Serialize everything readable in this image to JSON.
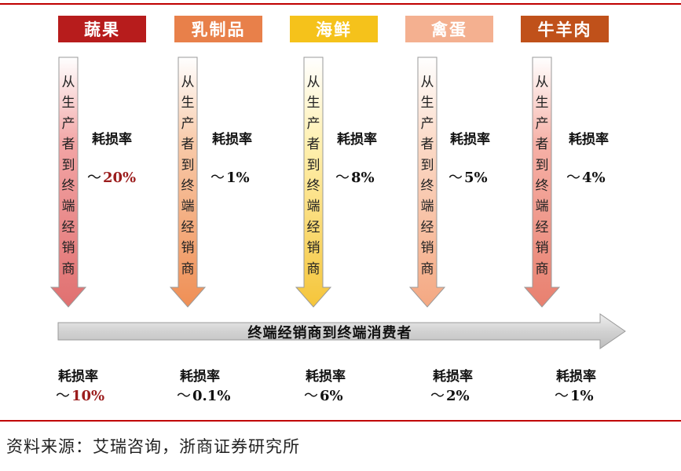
{
  "categories": [
    {
      "name": "蔬果",
      "color": "#b71c1c",
      "arrow_top": "#f2a4a4",
      "arrow_bottom": "#e07070",
      "loss_to_retailer": "20%",
      "loss_to_consumer": "10%",
      "highlight": true
    },
    {
      "name": "乳制品",
      "color": "#e8804a",
      "arrow_top": "#f8c9a8",
      "arrow_bottom": "#ef8f55",
      "loss_to_retailer": "1%",
      "loss_to_consumer": "0.1%",
      "highlight": false
    },
    {
      "name": "海鲜",
      "color": "#f5c21b",
      "arrow_top": "#fff0b0",
      "arrow_bottom": "#f5c53a",
      "loss_to_retailer": "8%",
      "loss_to_consumer": "6%",
      "highlight": false
    },
    {
      "name": "禽蛋",
      "color": "#f4b090",
      "arrow_top": "#fbd9c6",
      "arrow_bottom": "#f4a882",
      "loss_to_retailer": "5%",
      "loss_to_consumer": "2%",
      "highlight": false
    },
    {
      "name": "牛羊肉",
      "color": "#c0511a",
      "arrow_top": "#f6b0a6",
      "arrow_bottom": "#e8806f",
      "loss_to_retailer": "4%",
      "loss_to_consumer": "1%",
      "highlight": false
    }
  ],
  "vertical_arrow_text": "从生产者到终端经销商",
  "loss_label": "耗损率",
  "tilde": "～",
  "horizontal_arrow_text": "终端经销商到终端消费者",
  "source": "资料来源：艾瑞咨询，浙商证券研究所",
  "colors": {
    "rule": "#c00000",
    "highlight_value": "#9b1c1c",
    "horizontal_arrow": "#d6d6d6"
  }
}
